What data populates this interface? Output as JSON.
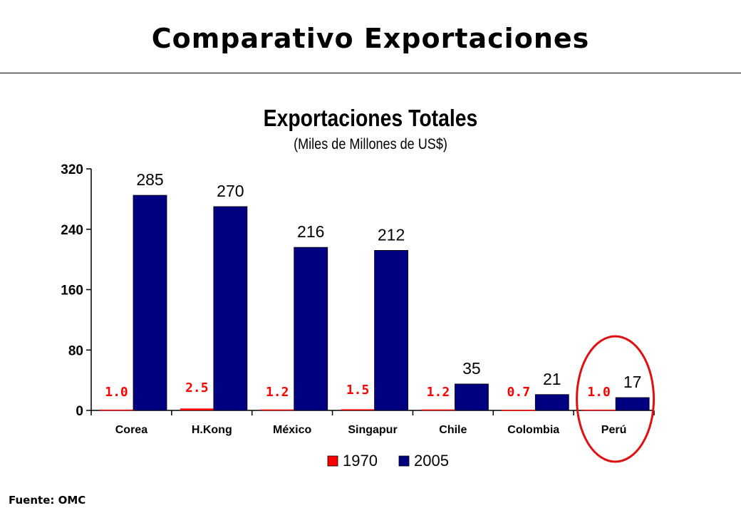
{
  "header": {
    "title": "Comparativo Exportaciones"
  },
  "footer": {
    "source": "Fuente: OMC"
  },
  "colors": {
    "series_1970": "#ff0000",
    "series_2005": "#000080",
    "label_1970": "#ff0000",
    "highlight_ellipse": "#e01010"
  },
  "highlight": {
    "category": "Perú",
    "shape": "ellipse"
  },
  "chart_data": {
    "type": "bar",
    "title": "Exportaciones Totales",
    "subtitle": "(Miles de Millones de US$)",
    "xlabel": "",
    "ylabel": "",
    "categories": [
      "Corea",
      "H.Kong",
      "México",
      "Singapur",
      "Chile",
      "Colombia",
      "Perú"
    ],
    "series": [
      {
        "name": "1970",
        "values": [
          1.0,
          2.5,
          1.2,
          1.5,
          1.2,
          0.7,
          1.0
        ],
        "labels": [
          "1.0",
          "2.5",
          "1.2",
          "1.5",
          "1.2",
          "0.7",
          "1.0"
        ]
      },
      {
        "name": "2005",
        "values": [
          285,
          270,
          216,
          212,
          35,
          21,
          17
        ],
        "labels": [
          "285",
          "270",
          "216",
          "212",
          "35",
          "21",
          "17"
        ]
      }
    ],
    "ylim": [
      0,
      320
    ],
    "yticks": [
      0,
      80,
      160,
      240,
      320
    ],
    "grid": false,
    "legend": "bottom-center"
  }
}
